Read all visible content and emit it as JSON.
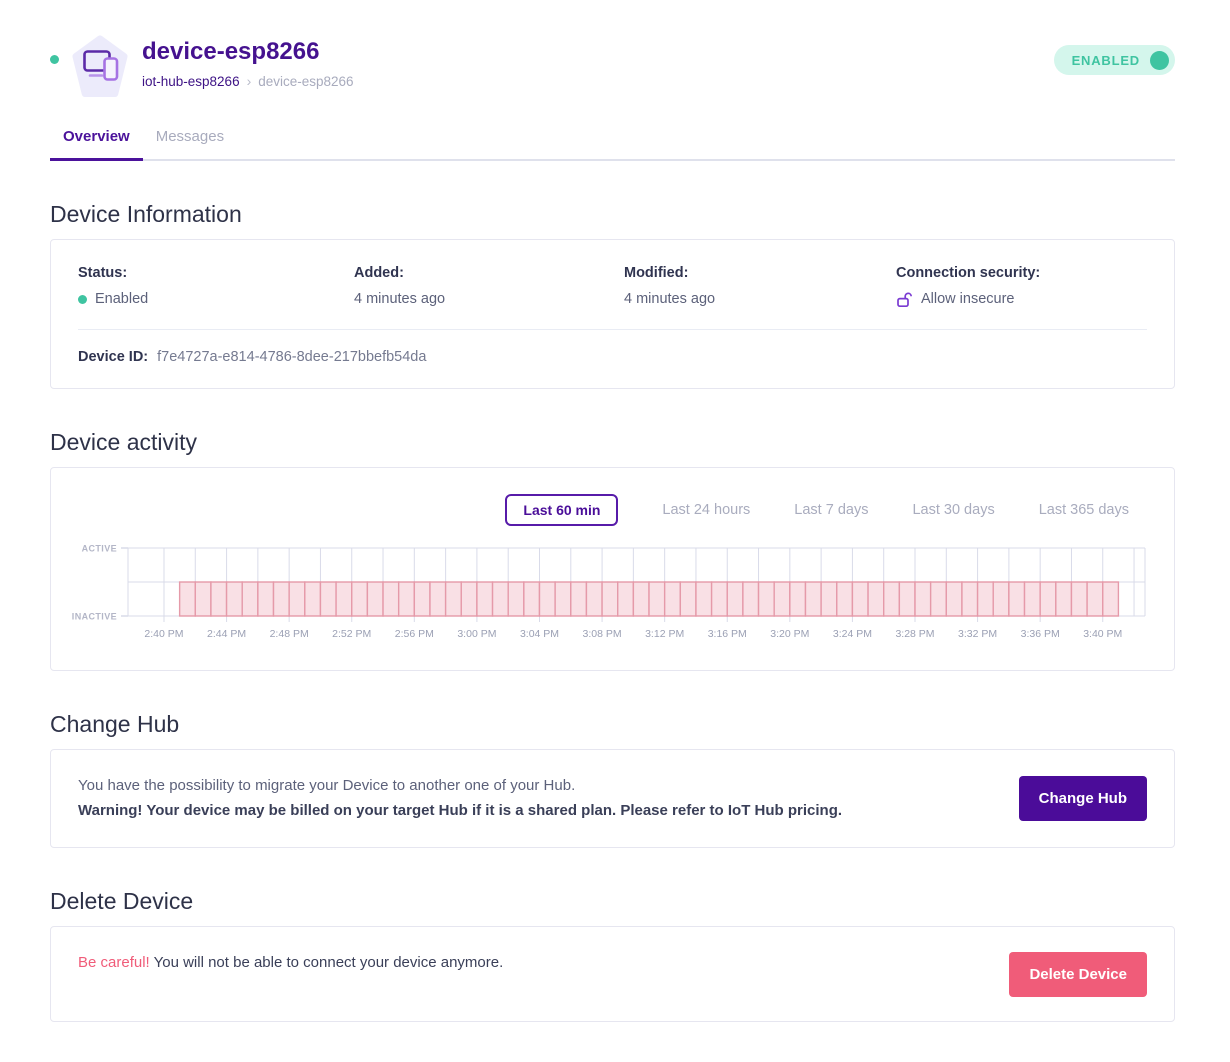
{
  "header": {
    "title": "device-esp8266",
    "breadcrumb": {
      "hub": "iot-hub-esp8266",
      "separator": "›",
      "device": "device-esp8266"
    },
    "enabled_badge": {
      "label": "ENABLED"
    },
    "colors": {
      "accent_purple": "#4b129b",
      "title_purple": "#45128f",
      "teal": "#3fc4a1"
    }
  },
  "tabs": [
    {
      "label": "Overview",
      "active": true
    },
    {
      "label": "Messages",
      "active": false
    }
  ],
  "device_information": {
    "heading": "Device Information",
    "fields": [
      {
        "label": "Status:",
        "value": "Enabled"
      },
      {
        "label": "Added:",
        "value": "4 minutes ago"
      },
      {
        "label": "Modified:",
        "value": "4 minutes ago"
      },
      {
        "label": "Connection security:",
        "value": "Allow insecure"
      }
    ],
    "device_id_label": "Device ID:",
    "device_id_value": "f7e4727a-e814-4786-8dee-217bbefb54da"
  },
  "device_activity": {
    "heading": "Device activity",
    "range_options": [
      {
        "label": "Last 60 min",
        "active": true
      },
      {
        "label": "Last 24 hours",
        "active": false
      },
      {
        "label": "Last 7 days",
        "active": false
      },
      {
        "label": "Last 30 days",
        "active": false
      },
      {
        "label": "Last 365 days",
        "active": false
      }
    ]
  },
  "chart_data": {
    "type": "bar",
    "title": "Device activity — Last 60 min",
    "y_categories": [
      "ACTIVE",
      "INACTIVE"
    ],
    "x_tick_labels": [
      "2:40 PM",
      "2:44 PM",
      "2:48 PM",
      "2:52 PM",
      "2:56 PM",
      "3:00 PM",
      "3:04 PM",
      "3:08 PM",
      "3:12 PM",
      "3:16 PM",
      "3:20 PM",
      "3:24 PM",
      "3:28 PM",
      "3:32 PM",
      "3:36 PM",
      "3:40 PM"
    ],
    "x_tick_interval_min": 4,
    "grid_interval_min": 2,
    "grid_minute_range": [
      0,
      62
    ],
    "window_min": [
      -2.3,
      62.7
    ],
    "activity": {
      "state": "INACTIVE",
      "from": "2:41 PM",
      "to": "3:41 PM",
      "resolution_min": 1,
      "bar_count": 60,
      "bar_start_min": 1
    },
    "legend": "none",
    "colors": {
      "grid": "#d9dbe9",
      "bar_fill": "#f9e0e5",
      "bar_stroke": "#e59aa9",
      "y_label": "#b3b6c7",
      "x_label": "#9ba0b4"
    }
  },
  "change_hub": {
    "heading": "Change Hub",
    "description": "You have the possibility to migrate your Device to another one of your Hub.",
    "warning": "Warning! Your device may be billed on your target Hub if it is a shared plan. Please refer to IoT Hub pricing.",
    "button_label": "Change Hub"
  },
  "delete_device": {
    "heading": "Delete Device",
    "warning_prefix": "Be careful!",
    "warning_text": " You will not be able to connect your device anymore.",
    "button_label": "Delete Device"
  }
}
